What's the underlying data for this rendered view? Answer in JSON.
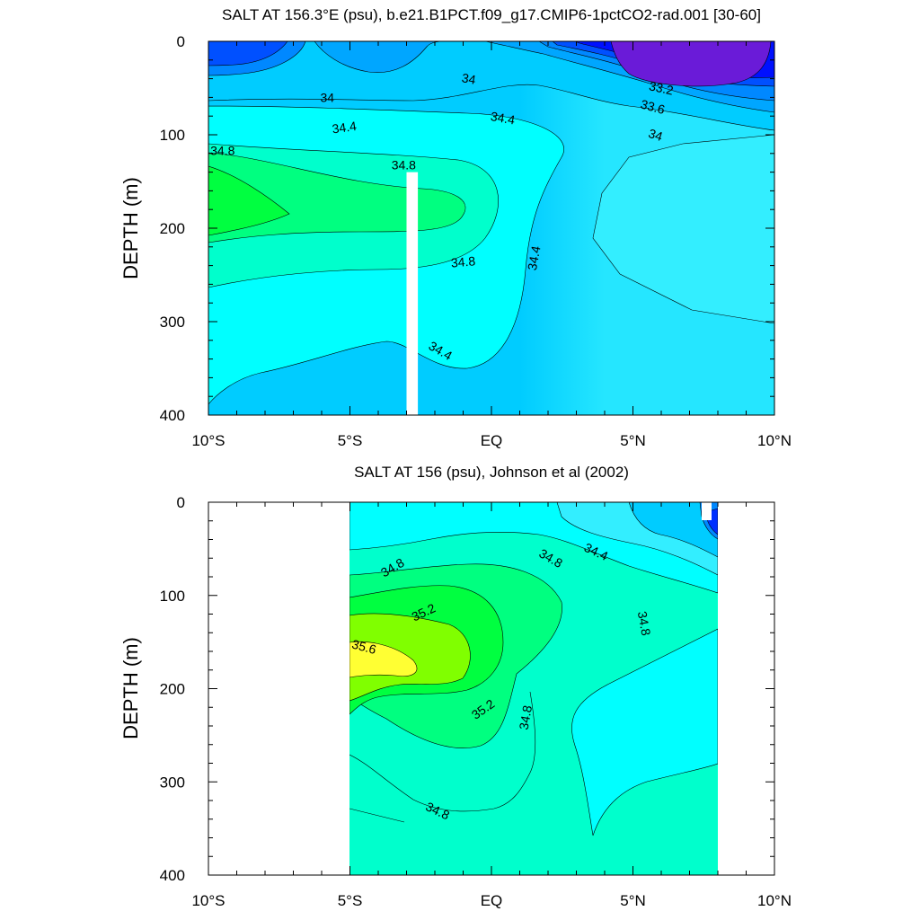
{
  "chart_data": [
    {
      "type": "contour",
      "title": "SALT AT 156.3°E (psu), b.e21.B1PCT.f09_g17.CMIP6-1pctCO2-rad.001 [30-60]",
      "ylabel": "DEPTH (m)",
      "xlim": [
        -10,
        10
      ],
      "ylim": [
        400,
        0
      ],
      "x_ticks": [
        {
          "value": -10,
          "label": "10°S"
        },
        {
          "value": -5,
          "label": "5°S"
        },
        {
          "value": 0,
          "label": "EQ"
        },
        {
          "value": 5,
          "label": "5°N"
        },
        {
          "value": 10,
          "label": "10°N"
        }
      ],
      "y_ticks": [
        0,
        100,
        200,
        300,
        400
      ],
      "data_extent": {
        "x": [
          -10,
          10
        ],
        "y": [
          5,
          400
        ]
      },
      "missing_strip": {
        "x": [
          -3,
          -2.6
        ],
        "y": [
          140,
          400
        ]
      },
      "contour_labels": [
        {
          "text": "34",
          "x": -0.8,
          "y": 40,
          "angle": 10
        },
        {
          "text": "33.2",
          "x": 6.0,
          "y": 50,
          "angle": 12
        },
        {
          "text": "34",
          "x": -5.8,
          "y": 60,
          "angle": 0
        },
        {
          "text": "33.6",
          "x": 5.7,
          "y": 70,
          "angle": 15
        },
        {
          "text": "34.4",
          "x": -5.2,
          "y": 92,
          "angle": -8
        },
        {
          "text": "34.4",
          "x": 0.4,
          "y": 82,
          "angle": 10
        },
        {
          "text": "34",
          "x": 5.8,
          "y": 100,
          "angle": 18
        },
        {
          "text": "34.8",
          "x": -9.5,
          "y": 117,
          "angle": 0
        },
        {
          "text": "34.8",
          "x": -3.1,
          "y": 132,
          "angle": 0
        },
        {
          "text": "34.8",
          "x": -1.0,
          "y": 236,
          "angle": -5
        },
        {
          "text": "34.4",
          "x": 1.5,
          "y": 232,
          "angle": -80
        },
        {
          "text": "34.4",
          "x": -1.8,
          "y": 331,
          "angle": 30
        }
      ]
    },
    {
      "type": "contour",
      "title": "SALT AT 156 (psu), Johnson et al (2002)",
      "ylabel": "DEPTH (m)",
      "xlim": [
        -10,
        10
      ],
      "ylim": [
        400,
        0
      ],
      "x_ticks": [
        {
          "value": -10,
          "label": "10°S"
        },
        {
          "value": -5,
          "label": "5°S"
        },
        {
          "value": 0,
          "label": "EQ"
        },
        {
          "value": 5,
          "label": "5°N"
        },
        {
          "value": 10,
          "label": "10°N"
        }
      ],
      "y_ticks": [
        0,
        100,
        200,
        300,
        400
      ],
      "data_extent": {
        "x": [
          -5,
          8
        ],
        "y": [
          5,
          400
        ]
      },
      "contour_labels": [
        {
          "text": "34.8",
          "x": -3.5,
          "y": 70,
          "angle": -30
        },
        {
          "text": "34.8",
          "x": 2.1,
          "y": 60,
          "angle": 30
        },
        {
          "text": "34.4",
          "x": 3.7,
          "y": 53,
          "angle": 25
        },
        {
          "text": "35.2",
          "x": -2.4,
          "y": 118,
          "angle": -25
        },
        {
          "text": "34.8",
          "x": 5.4,
          "y": 130,
          "angle": 80
        },
        {
          "text": "35.6",
          "x": -4.5,
          "y": 155,
          "angle": 15
        },
        {
          "text": "35.2",
          "x": -0.3,
          "y": 222,
          "angle": -35
        },
        {
          "text": "34.8",
          "x": 1.2,
          "y": 231,
          "angle": -80
        },
        {
          "text": "34.8",
          "x": -1.9,
          "y": 331,
          "angle": 25
        }
      ]
    }
  ]
}
